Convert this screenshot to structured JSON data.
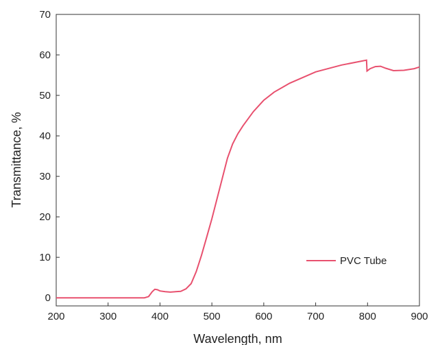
{
  "chart_data": {
    "type": "line",
    "title": "",
    "xlabel": "Wavelength, nm",
    "ylabel": "Transmittance, %",
    "xlim": [
      200,
      900
    ],
    "ylim": [
      -2,
      70
    ],
    "xticks": [
      200,
      300,
      400,
      500,
      600,
      700,
      800,
      900
    ],
    "yticks": [
      0,
      10,
      20,
      30,
      40,
      50,
      60,
      70
    ],
    "grid": false,
    "legend_position": "bottom-right",
    "series": [
      {
        "name": "PVC Tube",
        "color": "#e8506e",
        "x": [
          200,
          250,
          300,
          350,
          370,
          378,
          385,
          390,
          395,
          400,
          410,
          420,
          430,
          440,
          450,
          460,
          470,
          480,
          490,
          500,
          510,
          520,
          530,
          540,
          550,
          560,
          580,
          600,
          620,
          650,
          700,
          750,
          790,
          798,
          799,
          805,
          815,
          825,
          835,
          850,
          870,
          890,
          900
        ],
        "y": [
          0,
          0,
          0,
          0,
          0,
          0.3,
          1.5,
          2.1,
          2.0,
          1.7,
          1.5,
          1.4,
          1.5,
          1.6,
          2.2,
          3.5,
          6.5,
          10.5,
          15.0,
          19.5,
          24.5,
          29.5,
          34.5,
          38.0,
          40.5,
          42.5,
          46.0,
          48.8,
          50.8,
          53.0,
          55.8,
          57.5,
          58.5,
          58.7,
          56.0,
          56.6,
          57.1,
          57.2,
          56.7,
          56.1,
          56.2,
          56.6,
          57.0
        ]
      }
    ]
  }
}
